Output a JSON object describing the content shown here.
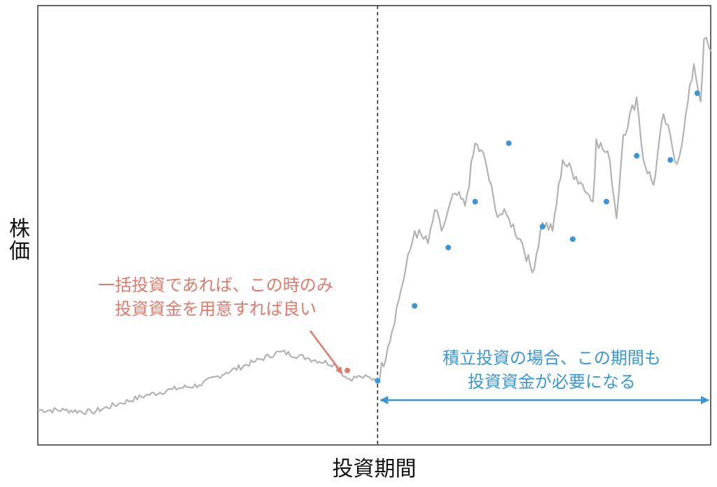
{
  "chart_data": {
    "type": "line",
    "ylabel": "株価",
    "xlabel": "投資期間",
    "grid": false,
    "x_range": [
      0,
      100
    ],
    "y_range": [
      0,
      100
    ],
    "series": [
      {
        "x": [
          0,
          4,
          8,
          12,
          16,
          20,
          24,
          28,
          32,
          36,
          40,
          44,
          46,
          48,
          50,
          50.5,
          52,
          54,
          56,
          58,
          59,
          60,
          62,
          63.5,
          65,
          66.5,
          68,
          70,
          72,
          73.5,
          75,
          76.5,
          78,
          80,
          81,
          82.5,
          83,
          85,
          86,
          87,
          89,
          90,
          91.5,
          93,
          95,
          96,
          97.5,
          98.5,
          99,
          100
        ],
        "y": [
          5,
          5,
          4.5,
          6.5,
          8.5,
          10,
          11,
          14,
          16.5,
          19,
          17.5,
          16,
          12.5,
          13,
          12.5,
          12,
          20,
          34,
          48,
          45,
          53,
          48,
          57,
          54,
          69,
          65,
          53,
          51,
          45,
          38,
          50,
          48,
          65,
          61,
          59,
          55,
          70,
          65,
          51,
          71,
          80,
          65,
          59,
          76,
          64,
          72,
          88,
          79,
          94,
          91
        ]
      }
    ],
    "lump_sum_point": {
      "x": 46,
      "y": 14.5
    },
    "installment_points": [
      {
        "x": 50.5,
        "y": 12
      },
      {
        "x": 56,
        "y": 30
      },
      {
        "x": 61,
        "y": 44
      },
      {
        "x": 65,
        "y": 55
      },
      {
        "x": 70,
        "y": 69
      },
      {
        "x": 75,
        "y": 49
      },
      {
        "x": 79.5,
        "y": 46
      },
      {
        "x": 84.5,
        "y": 55
      },
      {
        "x": 89,
        "y": 66
      },
      {
        "x": 94,
        "y": 65
      },
      {
        "x": 98,
        "y": 81
      }
    ],
    "divider_x": 50.5,
    "annotations": {
      "lump_sum": {
        "line1": "一括投資であれば、この時のみ",
        "line2": "投資資金を用意すれば良い"
      },
      "installment": {
        "line1": "積立投資の場合、この期間も",
        "line2": "投資資金が必要になる"
      }
    },
    "colors": {
      "line": "#b3b3b3",
      "lump_sum": "#e07a6b",
      "installment": "#3b95d6",
      "divider": "#222222",
      "frame": "#333333"
    }
  }
}
